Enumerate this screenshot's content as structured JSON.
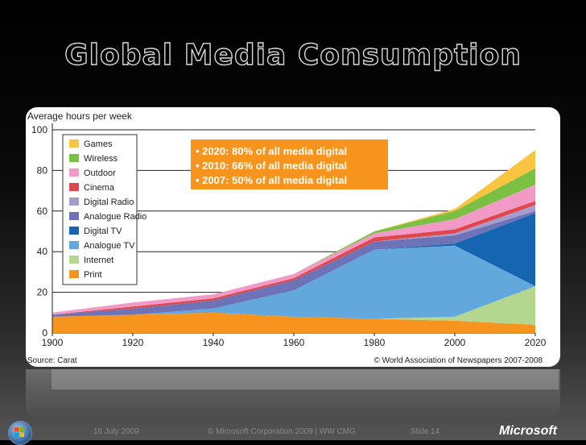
{
  "slide": {
    "title": "Global Media Consumption",
    "footer_date": "16 July 2009",
    "footer_center": "© Microsoft Corporation 2009 | WW CMG",
    "footer_slide": "Slide 14",
    "brand": "Microsoft"
  },
  "colors": {
    "Print": "#f7941d",
    "Internet": "#b3d78f",
    "Analogue TV": "#63a8dc",
    "Digital TV": "#1565b0",
    "Analogue Radio": "#6e73b8",
    "Digital Radio": "#a59ccd",
    "Cinema": "#e0474c",
    "Outdoor": "#f29ac6",
    "Wireless": "#7ac143",
    "Games": "#f9c440",
    "callout": "#f7941d"
  },
  "chart_data": {
    "type": "area",
    "stacked": true,
    "ylabel": "Average hours per week",
    "ylim": [
      0,
      100
    ],
    "yticks": [
      "0",
      "20",
      "40",
      "60",
      "80",
      "100"
    ],
    "x": [
      1900,
      1920,
      1940,
      1960,
      1980,
      2000,
      2020
    ],
    "xticks": [
      "1900",
      "1920",
      "1940",
      "1960",
      "1980",
      "2000",
      "2020"
    ],
    "series": [
      {
        "name": "Print",
        "values": [
          8,
          9,
          10,
          8,
          7,
          6,
          4
        ]
      },
      {
        "name": "Internet",
        "values": [
          0,
          0,
          0,
          0,
          0,
          2,
          19
        ]
      },
      {
        "name": "Analogue TV",
        "values": [
          0,
          0,
          2,
          13,
          34,
          35,
          0
        ]
      },
      {
        "name": "Digital TV",
        "values": [
          0,
          0,
          0,
          0,
          0,
          1,
          36
        ]
      },
      {
        "name": "Analogue Radio",
        "values": [
          1,
          3,
          4,
          5,
          4,
          4,
          1
        ]
      },
      {
        "name": "Digital Radio",
        "values": [
          0,
          0,
          0,
          0,
          0,
          1,
          3
        ]
      },
      {
        "name": "Cinema",
        "values": [
          0,
          1,
          1,
          1,
          2,
          2,
          2
        ]
      },
      {
        "name": "Outdoor",
        "values": [
          1,
          2,
          2,
          2,
          2,
          5,
          8
        ]
      },
      {
        "name": "Wireless",
        "values": [
          0,
          0,
          0,
          0,
          1,
          4,
          8
        ]
      },
      {
        "name": "Games",
        "values": [
          0,
          0,
          0,
          0,
          0,
          1,
          9
        ]
      }
    ],
    "legend_order": [
      "Games",
      "Wireless",
      "Outdoor",
      "Cinema",
      "Digital Radio",
      "Analogue Radio",
      "Digital TV",
      "Analogue TV",
      "Internet",
      "Print"
    ],
    "legend_position": "top-left",
    "annotation": [
      "• 2020: 80% of all media digital",
      "• 2010: 66% of all media digital",
      "• 2007: 50% of all media digital"
    ],
    "source_left": "Source: Carat",
    "source_right": "© World Association of Newspapers 2007-2008"
  }
}
